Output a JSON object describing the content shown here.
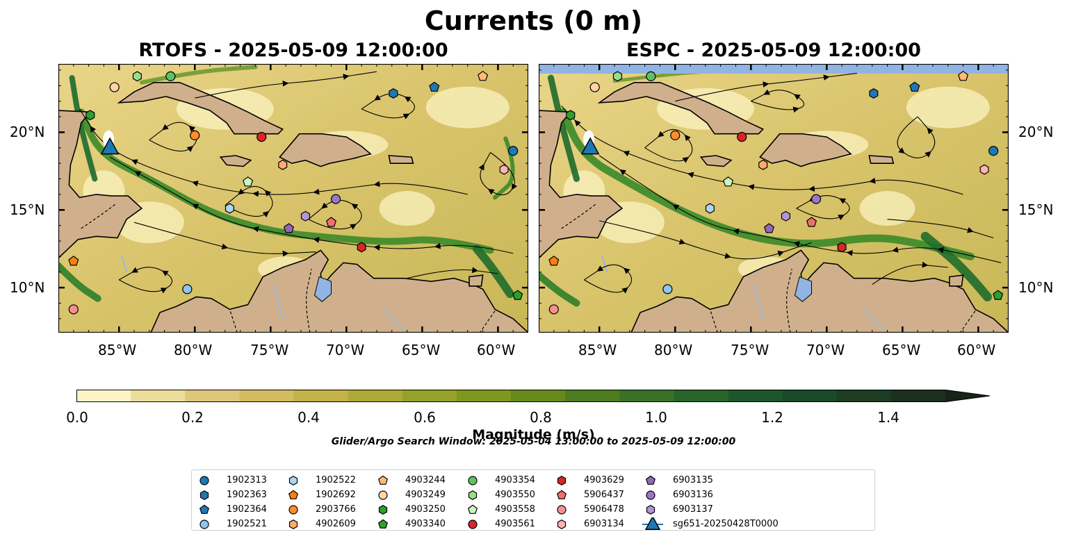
{
  "figure": {
    "title": "Currents (0 m)",
    "panels": [
      {
        "title": "RTOFS - 2025-05-09 12:00:00"
      },
      {
        "title": "ESPC - 2025-05-09 12:00:00"
      }
    ],
    "lon_labels": [
      "85°W",
      "80°W",
      "75°W",
      "70°W",
      "65°W",
      "60°W"
    ],
    "lat_labels": [
      "20°N",
      "15°N",
      "10°N"
    ],
    "colorbar": {
      "label": "Magnitude (m/s)",
      "ticks": [
        "0.0",
        "0.2",
        "0.4",
        "0.6",
        "0.8",
        "1.0",
        "1.2",
        "1.4"
      ],
      "range": [
        0,
        1.5
      ],
      "extend": "max",
      "colors": [
        "#fbf5c6",
        "#ecdd9b",
        "#dfc77a",
        "#d3bb60",
        "#c3b24a",
        "#aeaa35",
        "#96a12a",
        "#7f971f",
        "#66891c",
        "#4d7d20",
        "#3a7126",
        "#27652a",
        "#1b572b",
        "#1a4a28",
        "#1d3c24",
        "#1c301d",
        "#192319"
      ]
    },
    "search_window": "Glider/Argo Search Window: 2025-05-04 13:00:00 to 2025-05-09 12:00:00",
    "map_colors": {
      "land": "#d0b08c",
      "water": "#92b4e3"
    },
    "legend": [
      {
        "label": "1902313",
        "marker": "circle",
        "color": "#1f77b4"
      },
      {
        "label": "1902363",
        "marker": "hexagon",
        "color": "#1f77b4"
      },
      {
        "label": "1902364",
        "marker": "pentagon",
        "color": "#1f77b4"
      },
      {
        "label": "1902521",
        "marker": "circle",
        "color": "#8fc7ea"
      },
      {
        "label": "1902522",
        "marker": "hexagon",
        "color": "#aed6f1"
      },
      {
        "label": "1902692",
        "marker": "pentagon",
        "color": "#ff7f0e"
      },
      {
        "label": "2903766",
        "marker": "circle",
        "color": "#ff8c2e"
      },
      {
        "label": "4902609",
        "marker": "hexagon",
        "color": "#ffab6a"
      },
      {
        "label": "4903244",
        "marker": "pentagon",
        "color": "#ffbb78"
      },
      {
        "label": "4903249",
        "marker": "circle",
        "color": "#ffd5a6"
      },
      {
        "label": "4903250",
        "marker": "hexagon",
        "color": "#2ca02c"
      },
      {
        "label": "4903340",
        "marker": "pentagon",
        "color": "#2ca02c"
      },
      {
        "label": "4903354",
        "marker": "circle",
        "color": "#5fc25f"
      },
      {
        "label": "4903550",
        "marker": "hexagon",
        "color": "#98df8a"
      },
      {
        "label": "4903558",
        "marker": "pentagon",
        "color": "#c8f5c0"
      },
      {
        "label": "4903561",
        "marker": "circle",
        "color": "#d62728"
      },
      {
        "label": "4903629",
        "marker": "hexagon",
        "color": "#d62728"
      },
      {
        "label": "5906437",
        "marker": "pentagon",
        "color": "#ef6f6f"
      },
      {
        "label": "5906478",
        "marker": "circle",
        "color": "#f4908f"
      },
      {
        "label": "6903134",
        "marker": "hexagon",
        "color": "#ffb3b3"
      },
      {
        "label": "6903135",
        "marker": "pentagon",
        "color": "#9467bd"
      },
      {
        "label": "6903136",
        "marker": "circle",
        "color": "#9a76c6"
      },
      {
        "label": "6903137",
        "marker": "hexagon",
        "color": "#b395d8"
      },
      {
        "label": "sg651-20250428T0000",
        "marker": "triangle",
        "color": "#1f77b4"
      }
    ],
    "glider_position": {
      "lon": -85.6,
      "lat": 19.0
    },
    "floats": [
      {
        "label": "1902313",
        "lon": -59.0,
        "lat": 18.8
      },
      {
        "label": "1902363",
        "lon": -66.9,
        "lat": 22.5
      },
      {
        "label": "1902364",
        "lon": -64.2,
        "lat": 22.9
      },
      {
        "label": "1902521",
        "lon": -80.5,
        "lat": 9.9
      },
      {
        "label": "1902522",
        "lon": -77.7,
        "lat": 15.1
      },
      {
        "label": "1902692",
        "lon": -88.0,
        "lat": 11.7
      },
      {
        "label": "2903766",
        "lon": -80.0,
        "lat": 19.8
      },
      {
        "label": "4902609",
        "lon": -74.2,
        "lat": 17.9
      },
      {
        "label": "4903244",
        "lon": -61.0,
        "lat": 23.6
      },
      {
        "label": "4903249",
        "lon": -85.3,
        "lat": 22.9
      },
      {
        "label": "4903250",
        "lon": -86.9,
        "lat": 21.1
      },
      {
        "label": "4903340",
        "lon": -58.7,
        "lat": 9.5
      },
      {
        "label": "4903354",
        "lon": -81.6,
        "lat": 23.6
      },
      {
        "label": "4903550",
        "lon": -83.8,
        "lat": 23.6
      },
      {
        "label": "4903558",
        "lon": -76.5,
        "lat": 16.8
      },
      {
        "label": "4903561",
        "lon": -75.6,
        "lat": 19.7
      },
      {
        "label": "4903629",
        "lon": -69.0,
        "lat": 12.6
      },
      {
        "label": "5906437",
        "lon": -71.0,
        "lat": 14.2
      },
      {
        "label": "5906478",
        "lon": -88.0,
        "lat": 8.6
      },
      {
        "label": "6903134",
        "lon": -59.6,
        "lat": 17.6
      },
      {
        "label": "6903135",
        "lon": -73.8,
        "lat": 13.8
      },
      {
        "label": "6903136",
        "lon": -70.7,
        "lat": 15.7
      },
      {
        "label": "6903137",
        "lon": -72.7,
        "lat": 14.6
      }
    ]
  }
}
